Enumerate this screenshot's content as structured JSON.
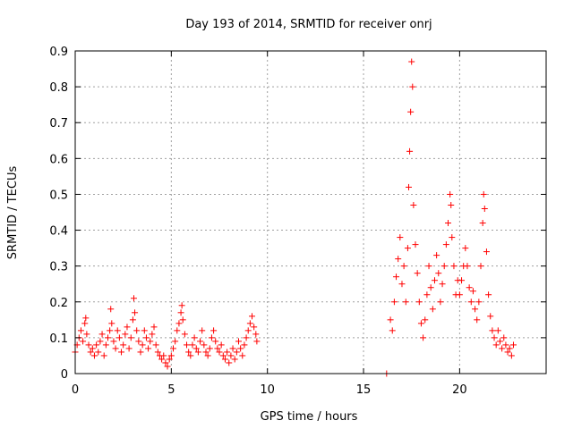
{
  "chart_data": {
    "type": "scatter",
    "title": "Day 193 of 2014, SRMTID for receiver onrj",
    "xlabel": "GPS time / hours",
    "ylabel": "SRMTID / TECUs",
    "xlim": [
      0,
      24.5
    ],
    "ylim": [
      0,
      0.9
    ],
    "xticks": [
      0,
      5,
      10,
      15,
      20
    ],
    "yticks": [
      0,
      0.1,
      0.2,
      0.3,
      0.4,
      0.5,
      0.6,
      0.7,
      0.8,
      0.9
    ],
    "xtick_labels": [
      "0",
      "5",
      "10",
      "15",
      "20"
    ],
    "ytick_labels": [
      "0",
      "0.1",
      "0.2",
      "0.3",
      "0.4",
      "0.5",
      "0.6",
      "0.7",
      "0.8",
      "0.9"
    ],
    "grid": true,
    "marker": "+",
    "color": "#ff0000",
    "series": [
      {
        "name": "SRMTID",
        "points": [
          [
            0.0,
            0.06
          ],
          [
            0.1,
            0.08
          ],
          [
            0.2,
            0.1
          ],
          [
            0.3,
            0.12
          ],
          [
            0.4,
            0.09
          ],
          [
            0.5,
            0.14
          ],
          [
            0.55,
            0.155
          ],
          [
            0.6,
            0.11
          ],
          [
            0.7,
            0.08
          ],
          [
            0.8,
            0.06
          ],
          [
            0.9,
            0.07
          ],
          [
            1.0,
            0.05
          ],
          [
            1.1,
            0.08
          ],
          [
            1.2,
            0.06
          ],
          [
            1.3,
            0.09
          ],
          [
            1.4,
            0.11
          ],
          [
            1.5,
            0.05
          ],
          [
            1.6,
            0.08
          ],
          [
            1.7,
            0.1
          ],
          [
            1.8,
            0.12
          ],
          [
            1.85,
            0.18
          ],
          [
            1.9,
            0.14
          ],
          [
            2.0,
            0.09
          ],
          [
            2.1,
            0.07
          ],
          [
            2.2,
            0.12
          ],
          [
            2.3,
            0.1
          ],
          [
            2.4,
            0.06
          ],
          [
            2.5,
            0.08
          ],
          [
            2.6,
            0.11
          ],
          [
            2.7,
            0.13
          ],
          [
            2.8,
            0.07
          ],
          [
            2.9,
            0.1
          ],
          [
            3.0,
            0.15
          ],
          [
            3.05,
            0.21
          ],
          [
            3.1,
            0.17
          ],
          [
            3.2,
            0.12
          ],
          [
            3.3,
            0.09
          ],
          [
            3.4,
            0.06
          ],
          [
            3.5,
            0.08
          ],
          [
            3.6,
            0.12
          ],
          [
            3.7,
            0.1
          ],
          [
            3.8,
            0.07
          ],
          [
            3.9,
            0.09
          ],
          [
            4.0,
            0.11
          ],
          [
            4.1,
            0.13
          ],
          [
            4.2,
            0.08
          ],
          [
            4.3,
            0.06
          ],
          [
            4.4,
            0.05
          ],
          [
            4.5,
            0.04
          ],
          [
            4.6,
            0.05
          ],
          [
            4.7,
            0.03
          ],
          [
            4.8,
            0.02
          ],
          [
            4.9,
            0.04
          ],
          [
            5.0,
            0.05
          ],
          [
            5.1,
            0.07
          ],
          [
            5.2,
            0.09
          ],
          [
            5.3,
            0.12
          ],
          [
            5.4,
            0.14
          ],
          [
            5.5,
            0.17
          ],
          [
            5.55,
            0.19
          ],
          [
            5.6,
            0.15
          ],
          [
            5.7,
            0.11
          ],
          [
            5.8,
            0.08
          ],
          [
            5.9,
            0.06
          ],
          [
            6.0,
            0.05
          ],
          [
            6.1,
            0.08
          ],
          [
            6.2,
            0.1
          ],
          [
            6.3,
            0.07
          ],
          [
            6.4,
            0.06
          ],
          [
            6.5,
            0.09
          ],
          [
            6.6,
            0.12
          ],
          [
            6.7,
            0.08
          ],
          [
            6.8,
            0.06
          ],
          [
            6.9,
            0.05
          ],
          [
            7.0,
            0.07
          ],
          [
            7.1,
            0.1
          ],
          [
            7.2,
            0.12
          ],
          [
            7.3,
            0.09
          ],
          [
            7.4,
            0.07
          ],
          [
            7.5,
            0.06
          ],
          [
            7.6,
            0.08
          ],
          [
            7.7,
            0.05
          ],
          [
            7.8,
            0.04
          ],
          [
            7.9,
            0.06
          ],
          [
            8.0,
            0.03
          ],
          [
            8.1,
            0.05
          ],
          [
            8.2,
            0.07
          ],
          [
            8.3,
            0.04
          ],
          [
            8.4,
            0.06
          ],
          [
            8.5,
            0.09
          ],
          [
            8.6,
            0.07
          ],
          [
            8.7,
            0.05
          ],
          [
            8.8,
            0.08
          ],
          [
            8.9,
            0.1
          ],
          [
            9.0,
            0.12
          ],
          [
            9.1,
            0.14
          ],
          [
            9.2,
            0.16
          ],
          [
            9.3,
            0.13
          ],
          [
            9.4,
            0.11
          ],
          [
            9.45,
            0.09
          ],
          [
            16.2,
            0.0
          ],
          [
            16.4,
            0.15
          ],
          [
            16.5,
            0.12
          ],
          [
            16.6,
            0.2
          ],
          [
            16.7,
            0.27
          ],
          [
            16.8,
            0.32
          ],
          [
            16.9,
            0.38
          ],
          [
            17.0,
            0.25
          ],
          [
            17.1,
            0.3
          ],
          [
            17.2,
            0.2
          ],
          [
            17.3,
            0.35
          ],
          [
            17.35,
            0.52
          ],
          [
            17.4,
            0.62
          ],
          [
            17.45,
            0.73
          ],
          [
            17.5,
            0.87
          ],
          [
            17.55,
            0.8
          ],
          [
            17.6,
            0.47
          ],
          [
            17.7,
            0.36
          ],
          [
            17.8,
            0.28
          ],
          [
            17.9,
            0.2
          ],
          [
            18.0,
            0.14
          ],
          [
            18.1,
            0.1
          ],
          [
            18.2,
            0.15
          ],
          [
            18.3,
            0.22
          ],
          [
            18.4,
            0.3
          ],
          [
            18.5,
            0.24
          ],
          [
            18.6,
            0.18
          ],
          [
            18.7,
            0.26
          ],
          [
            18.8,
            0.33
          ],
          [
            18.9,
            0.28
          ],
          [
            19.0,
            0.2
          ],
          [
            19.1,
            0.25
          ],
          [
            19.2,
            0.3
          ],
          [
            19.3,
            0.36
          ],
          [
            19.4,
            0.42
          ],
          [
            19.5,
            0.5
          ],
          [
            19.55,
            0.47
          ],
          [
            19.6,
            0.38
          ],
          [
            19.7,
            0.3
          ],
          [
            19.8,
            0.22
          ],
          [
            19.9,
            0.26
          ],
          [
            20.0,
            0.22
          ],
          [
            20.1,
            0.26
          ],
          [
            20.2,
            0.3
          ],
          [
            20.3,
            0.35
          ],
          [
            20.4,
            0.3
          ],
          [
            20.5,
            0.24
          ],
          [
            20.6,
            0.2
          ],
          [
            20.7,
            0.23
          ],
          [
            20.8,
            0.18
          ],
          [
            20.9,
            0.15
          ],
          [
            21.0,
            0.2
          ],
          [
            21.1,
            0.3
          ],
          [
            21.2,
            0.42
          ],
          [
            21.25,
            0.5
          ],
          [
            21.3,
            0.46
          ],
          [
            21.4,
            0.34
          ],
          [
            21.5,
            0.22
          ],
          [
            21.6,
            0.16
          ],
          [
            21.7,
            0.12
          ],
          [
            21.8,
            0.1
          ],
          [
            21.9,
            0.08
          ],
          [
            22.0,
            0.12
          ],
          [
            22.1,
            0.09
          ],
          [
            22.2,
            0.07
          ],
          [
            22.3,
            0.1
          ],
          [
            22.4,
            0.08
          ],
          [
            22.5,
            0.06
          ],
          [
            22.6,
            0.07
          ],
          [
            22.7,
            0.05
          ],
          [
            22.8,
            0.08
          ]
        ]
      }
    ]
  }
}
